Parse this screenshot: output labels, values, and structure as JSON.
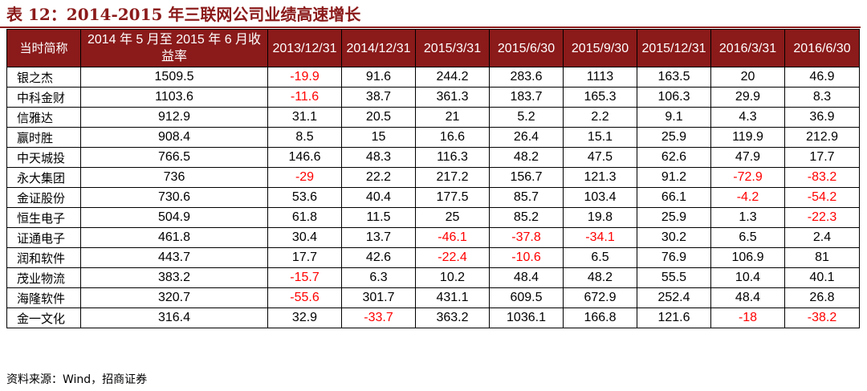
{
  "title": "表 12：2014-2015 年三联网公司业绩高速增长",
  "columns": [
    "当时简称",
    "2014 年 5 月至 2015 年 6 月收益率",
    "2013/12/31",
    "2014/12/31",
    "2015/3/31",
    "2015/6/30",
    "2015/9/30",
    "2015/12/31",
    "2016/3/31",
    "2016/6/30"
  ],
  "rows": [
    {
      "name": "银之杰",
      "values": [
        "1509.5",
        "-19.9",
        "91.6",
        "244.2",
        "283.6",
        "1113",
        "163.5",
        "20",
        "46.9"
      ]
    },
    {
      "name": "中科金财",
      "values": [
        "1103.6",
        "-11.6",
        "38.7",
        "361.3",
        "183.7",
        "165.3",
        "106.3",
        "29.9",
        "8.3"
      ]
    },
    {
      "name": "信雅达",
      "values": [
        "912.9",
        "31.1",
        "20.5",
        "21",
        "5.2",
        "2.2",
        "9.1",
        "4.3",
        "36.9"
      ]
    },
    {
      "name": "赢时胜",
      "values": [
        "908.4",
        "8.5",
        "15",
        "16.6",
        "26.4",
        "15.1",
        "25.9",
        "119.9",
        "212.9"
      ]
    },
    {
      "name": "中天城投",
      "values": [
        "766.5",
        "146.6",
        "48.3",
        "116.3",
        "48.2",
        "47.5",
        "62.6",
        "47.9",
        "17.7"
      ]
    },
    {
      "name": "永大集团",
      "values": [
        "736",
        "-29",
        "22.2",
        "217.2",
        "156.7",
        "121.3",
        "91.2",
        "-72.9",
        "-83.2"
      ]
    },
    {
      "name": "金证股份",
      "values": [
        "730.6",
        "53.6",
        "40.4",
        "177.5",
        "85.7",
        "103.4",
        "66.1",
        "-4.2",
        "-54.2"
      ]
    },
    {
      "name": "恒生电子",
      "values": [
        "504.9",
        "61.8",
        "11.5",
        "25",
        "85.2",
        "19.8",
        "25.9",
        "1.3",
        "-22.3"
      ]
    },
    {
      "name": "证通电子",
      "values": [
        "461.8",
        "30.4",
        "13.7",
        "-46.1",
        "-37.8",
        "-34.1",
        "30.2",
        "6.5",
        "2.4"
      ]
    },
    {
      "name": "润和软件",
      "values": [
        "443.7",
        "17.7",
        "42.6",
        "-22.4",
        "-10.6",
        "6.5",
        "76.9",
        "106.9",
        "81"
      ]
    },
    {
      "name": "茂业物流",
      "values": [
        "383.2",
        "-15.7",
        "6.3",
        "10.2",
        "48.4",
        "48.2",
        "55.5",
        "10.4",
        "40.1"
      ]
    },
    {
      "name": "海隆软件",
      "values": [
        "320.7",
        "-55.6",
        "301.7",
        "431.1",
        "609.5",
        "672.9",
        "252.4",
        "48.4",
        "26.8"
      ]
    },
    {
      "name": "金一文化",
      "values": [
        "316.4",
        "32.9",
        "-33.7",
        "363.2",
        "1036.1",
        "166.8",
        "121.6",
        "-18",
        "-38.2"
      ]
    }
  ],
  "source": "资料来源：Wind，招商证券",
  "colors": {
    "header_bg": "#8B1A1A",
    "header_text": "#FFFFFF",
    "negative": "#FF0000",
    "title": "#8B1A1A"
  }
}
